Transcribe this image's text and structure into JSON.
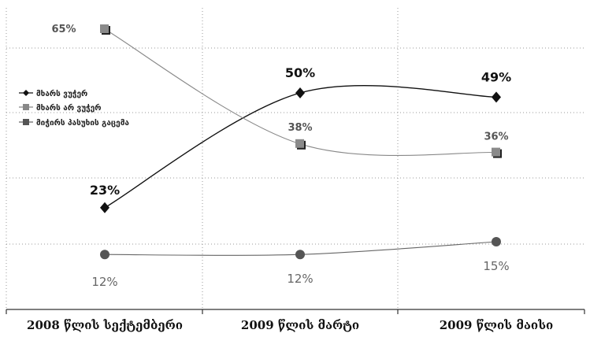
{
  "chart_data": {
    "type": "line",
    "categories": [
      "2008 წლის სექტემბერი",
      "2009 წლის მარტი",
      "2009 წლის მაისი"
    ],
    "series": [
      {
        "name": "მხარს ვუჭერ",
        "values": [
          23,
          50,
          49
        ],
        "labels": [
          "23%",
          "50%",
          "49%"
        ],
        "color": "#111111",
        "marker": "diamond"
      },
      {
        "name": "მხარს არ ვუჭერ",
        "values": [
          65,
          38,
          36
        ],
        "labels": [
          "65%",
          "38%",
          "36%"
        ],
        "color": "#888888",
        "marker": "square"
      },
      {
        "name": "მიჭირს პასუხის გაცემა",
        "values": [
          12,
          12,
          15
        ],
        "labels": [
          "12%",
          "12%",
          "15%"
        ],
        "color": "#666666",
        "marker": "circle"
      }
    ],
    "ylim": [
      0,
      70
    ],
    "grid": true,
    "legend_position": "left"
  }
}
